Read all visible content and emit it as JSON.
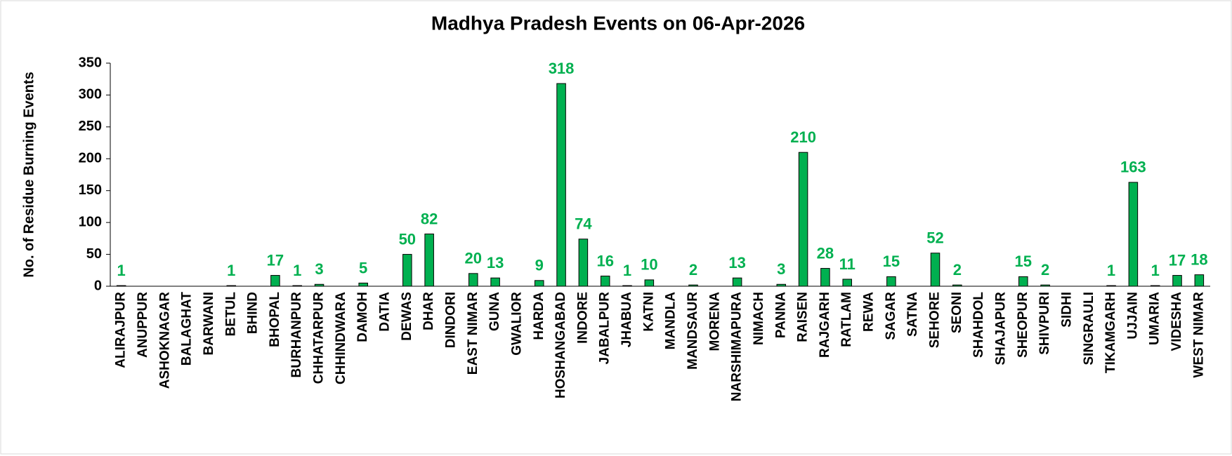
{
  "chart_data": {
    "type": "bar",
    "title": "Madhya Pradesh Events on 06-Apr-2026",
    "y_label": "No. of Residue Burning Events",
    "categories": [
      "ALIRAJPUR",
      "ANUPPUR",
      "ASHOKNAGAR",
      "BALAGHAT",
      "BARWANI",
      "BETUL",
      "BHIND",
      "BHOPAL",
      "BURHANPUR",
      "CHHATARPUR",
      "CHHINDWARA",
      "DAMOH",
      "DATIA",
      "DEWAS",
      "DHAR",
      "DINDORI",
      "EAST NIMAR",
      "GUNA",
      "GWALIOR",
      "HARDA",
      "HOSHANGABAD",
      "INDORE",
      "JABALPUR",
      "JHABUA",
      "KATNI",
      "MANDLA",
      "MANDSAUR",
      "MORENA",
      "NARSHIMAPURA",
      "NIMACH",
      "PANNA",
      "RAISEN",
      "RAJGARH",
      "RATLAM",
      "REWA",
      "SAGAR",
      "SATNA",
      "SEHORE",
      "SEONI",
      "SHAHDOL",
      "SHAJAPUR",
      "SHEOPUR",
      "SHIVPURI",
      "SIDHI",
      "SINGRAULI",
      "TIKAMGARH",
      "UJJAIN",
      "UMARIA",
      "VIDESHA",
      "WEST NIMAR"
    ],
    "values": [
      1,
      0,
      0,
      0,
      0,
      1,
      0,
      17,
      1,
      3,
      0,
      5,
      0,
      50,
      82,
      0,
      20,
      13,
      0,
      9,
      318,
      74,
      16,
      1,
      10,
      0,
      2,
      0,
      13,
      0,
      3,
      210,
      28,
      11,
      0,
      15,
      0,
      52,
      2,
      0,
      0,
      15,
      2,
      0,
      0,
      1,
      163,
      1,
      17,
      18
    ],
    "value_labels": [
      "1",
      null,
      null,
      null,
      null,
      "1",
      null,
      "17",
      "1",
      "3",
      null,
      "5",
      null,
      "50",
      "82",
      null,
      "20",
      "13",
      null,
      "9",
      "318",
      "74",
      "16",
      "1",
      "10",
      null,
      "2",
      null,
      "13",
      null,
      "3",
      "210",
      "28",
      "11",
      null,
      "15",
      null,
      "52",
      "2",
      null,
      null,
      "15",
      "2",
      null,
      null,
      "1",
      "163",
      "1",
      "17",
      "18"
    ],
    "color": "#00b050",
    "label_color": "#00b050",
    "ylim": [
      0,
      350
    ],
    "yticks": [
      0,
      50,
      100,
      150,
      200,
      250,
      300,
      350
    ]
  }
}
